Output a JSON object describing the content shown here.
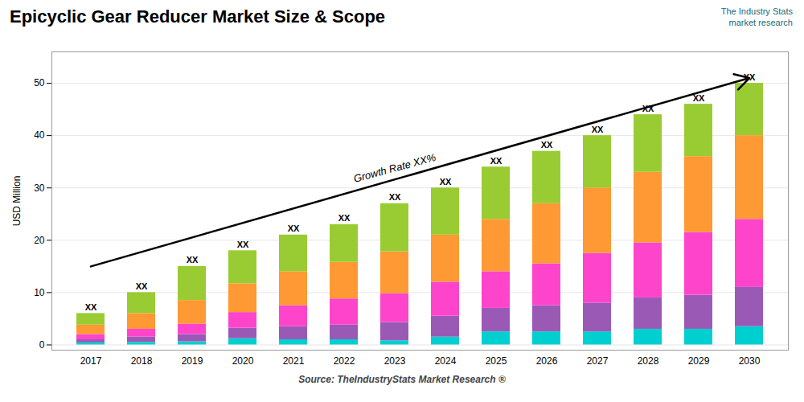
{
  "chart_data": {
    "type": "bar",
    "stacked": true,
    "title": "Epicyclic Gear Reducer Market Size & Scope",
    "ylabel": "USD Million",
    "categories": [
      2017,
      2018,
      2019,
      2020,
      2021,
      2022,
      2023,
      2024,
      2025,
      2026,
      2027,
      2028,
      2029,
      2030
    ],
    "series": [
      {
        "color": "#00CFCF",
        "values": [
          0.4,
          0.5,
          0.6,
          1.2,
          1.0,
          1.0,
          0.8,
          1.5,
          2.5,
          2.5,
          2.5,
          3.0,
          3.0,
          3.5
        ]
      },
      {
        "color": "#9B59B6",
        "values": [
          0.6,
          1.0,
          1.4,
          2.0,
          2.5,
          2.8,
          3.5,
          4.0,
          4.5,
          5.0,
          5.5,
          6.0,
          6.5,
          7.5
        ]
      },
      {
        "color": "#FF44CC",
        "values": [
          1.0,
          1.5,
          2.0,
          3.0,
          4.0,
          5.0,
          5.5,
          6.5,
          7.0,
          8.0,
          9.5,
          10.5,
          12.0,
          13.0
        ]
      },
      {
        "color": "#FF9933",
        "values": [
          1.8,
          3.0,
          4.5,
          5.5,
          6.5,
          7.0,
          8.0,
          9.0,
          10.0,
          11.5,
          12.5,
          13.5,
          14.5,
          16.0
        ]
      },
      {
        "color": "#99CC33",
        "values": [
          2.2,
          4.0,
          6.5,
          6.3,
          7.0,
          7.2,
          9.2,
          9.0,
          10.0,
          10.0,
          10.0,
          11.0,
          10.0,
          10.0
        ]
      }
    ],
    "ylim": [
      -1,
      56
    ],
    "yticks": [
      0,
      10,
      20,
      30,
      40,
      50
    ],
    "grid": true,
    "annotations": [
      {
        "type": "bar_label",
        "text": "XX"
      },
      {
        "type": "arrow",
        "text": "Growth Rate XX%",
        "y1": 15,
        "y2": 51
      },
      {
        "type": "logo",
        "text": "The Industry Stats\nmarket research",
        "color": "#1a6b7a"
      },
      {
        "type": "source",
        "text": "Source: TheIndustryStats Market Research ®",
        "color": "#444444"
      }
    ]
  }
}
